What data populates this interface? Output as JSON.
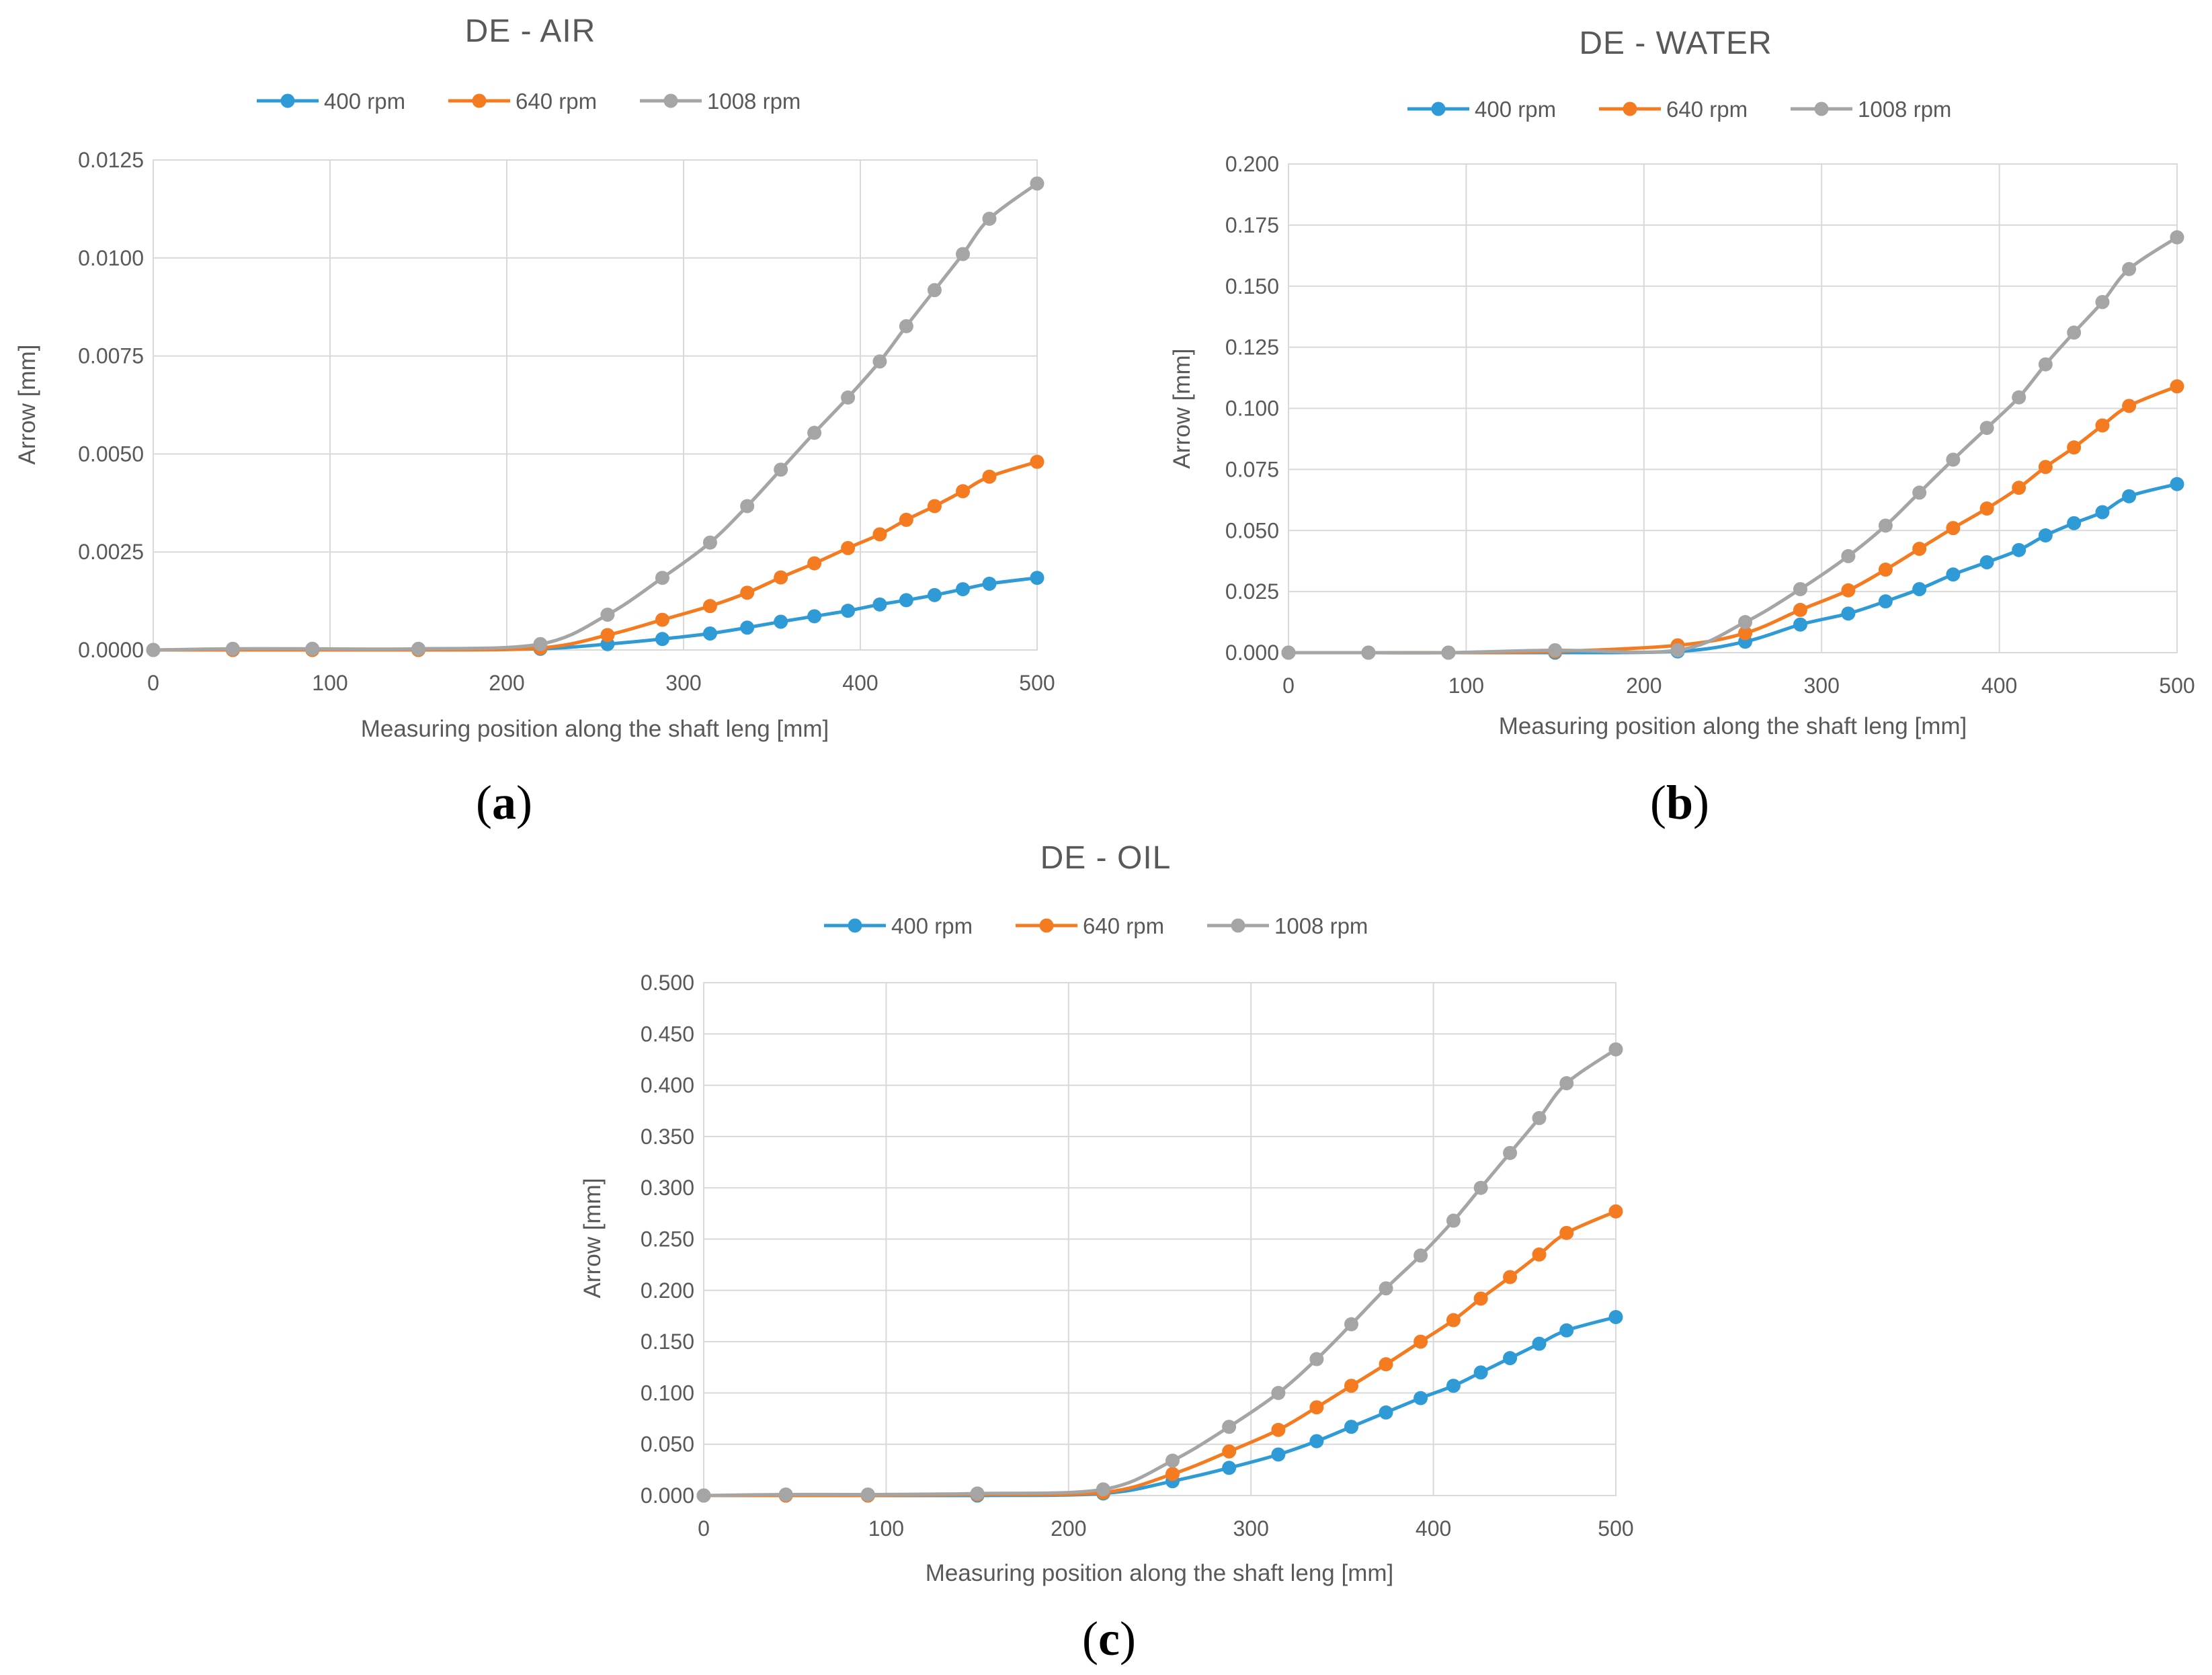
{
  "chart_data": [
    {
      "id": "a",
      "type": "line",
      "title": "DE - AIR",
      "panel_label": "a",
      "xlabel": "Measuring position along the shaft leng [mm]",
      "ylabel": "Arrow [mm]",
      "xlim": [
        0,
        500
      ],
      "ylim": [
        0,
        0.0125
      ],
      "x_ticks": [
        0,
        100,
        200,
        300,
        400,
        500
      ],
      "x_tick_labels": [
        "0",
        "100",
        "200",
        "300",
        "400",
        "500"
      ],
      "y_ticks": [
        0,
        0.0025,
        0.005,
        0.0075,
        0.01,
        0.0125
      ],
      "y_tick_labels": [
        "0.0000",
        "0.0025",
        "0.0050",
        "0.0075",
        "0.0100",
        "0.0125"
      ],
      "grid": true,
      "legend_position": "top",
      "x": [
        0,
        45,
        90,
        150,
        219,
        257,
        288,
        315,
        336,
        355,
        374,
        393,
        411,
        426,
        442,
        458,
        473,
        500
      ],
      "series": [
        {
          "name": "400 rpm",
          "color": "#2E9BD6",
          "values": [
            0,
            0,
            0,
            0,
            3e-05,
            0.00015,
            0.00028,
            0.00042,
            0.00057,
            0.00072,
            0.00086,
            0.001,
            0.00116,
            0.00127,
            0.0014,
            0.00155,
            0.00169,
            0.00184
          ]
        },
        {
          "name": "640 rpm",
          "color": "#F47B20",
          "values": [
            0,
            0,
            0,
            0,
            5e-05,
            0.00038,
            0.00077,
            0.00112,
            0.00146,
            0.00185,
            0.00221,
            0.0026,
            0.00295,
            0.00332,
            0.00367,
            0.00405,
            0.00442,
            0.0048
          ]
        },
        {
          "name": "1008 rpm",
          "color": "#A5A5A5",
          "values": [
            0,
            3e-05,
            3e-05,
            3e-05,
            0.00015,
            0.0009,
            0.00184,
            0.00274,
            0.00367,
            0.0046,
            0.00554,
            0.00644,
            0.00736,
            0.00826,
            0.00918,
            0.0101,
            0.011,
            0.0119
          ]
        }
      ]
    },
    {
      "id": "b",
      "type": "line",
      "title": "DE - WATER",
      "panel_label": "b",
      "xlabel": "Measuring position along the shaft leng [mm]",
      "ylabel": "Arrow [mm]",
      "xlim": [
        0,
        500
      ],
      "ylim": [
        0,
        0.2
      ],
      "x_ticks": [
        0,
        100,
        200,
        300,
        400,
        500
      ],
      "x_tick_labels": [
        "0",
        "100",
        "200",
        "300",
        "400",
        "500"
      ],
      "y_ticks": [
        0,
        0.025,
        0.05,
        0.075,
        0.1,
        0.125,
        0.15,
        0.175,
        0.2
      ],
      "y_tick_labels": [
        "0.000",
        "0.025",
        "0.050",
        "0.075",
        "0.100",
        "0.125",
        "0.150",
        "0.175",
        "0.200"
      ],
      "grid": true,
      "legend_position": "top",
      "x": [
        0,
        45,
        90,
        150,
        219,
        257,
        288,
        315,
        336,
        355,
        374,
        393,
        411,
        426,
        442,
        458,
        473,
        500
      ],
      "series": [
        {
          "name": "400 rpm",
          "color": "#2E9BD6",
          "values": [
            0,
            0,
            0,
            0,
            0.0005,
            0.0045,
            0.0115,
            0.016,
            0.021,
            0.026,
            0.032,
            0.037,
            0.042,
            0.048,
            0.053,
            0.0575,
            0.064,
            0.069
          ]
        },
        {
          "name": "640 rpm",
          "color": "#F47B20",
          "values": [
            0,
            0,
            0,
            0.0005,
            0.003,
            0.008,
            0.0175,
            0.0255,
            0.034,
            0.0425,
            0.051,
            0.059,
            0.0675,
            0.076,
            0.084,
            0.093,
            0.101,
            0.109
          ]
        },
        {
          "name": "1008 rpm",
          "color": "#A5A5A5",
          "values": [
            0,
            0,
            0,
            0.001,
            0.001,
            0.0125,
            0.026,
            0.0395,
            0.052,
            0.0655,
            0.079,
            0.092,
            0.1045,
            0.118,
            0.131,
            0.1435,
            0.157,
            0.17
          ]
        }
      ]
    },
    {
      "id": "c",
      "type": "line",
      "title": "DE - OIL",
      "panel_label": "c",
      "xlabel": "Measuring position along the shaft leng  [mm]",
      "ylabel": "Arrow [mm]",
      "xlim": [
        0,
        500
      ],
      "ylim": [
        0,
        0.5
      ],
      "x_ticks": [
        0,
        100,
        200,
        300,
        400,
        500
      ],
      "x_tick_labels": [
        "0",
        "100",
        "200",
        "300",
        "400",
        "500"
      ],
      "y_ticks": [
        0,
        0.05,
        0.1,
        0.15,
        0.2,
        0.25,
        0.3,
        0.35,
        0.4,
        0.45,
        0.5
      ],
      "y_tick_labels": [
        "0.000",
        "0.050",
        "0.100",
        "0.150",
        "0.200",
        "0.250",
        "0.300",
        "0.350",
        "0.400",
        "0.450",
        "0.500"
      ],
      "grid": true,
      "legend_position": "top",
      "x": [
        0,
        45,
        90,
        150,
        219,
        257,
        288,
        315,
        336,
        355,
        374,
        393,
        411,
        426,
        442,
        458,
        473,
        500
      ],
      "series": [
        {
          "name": "400 rpm",
          "color": "#2E9BD6",
          "values": [
            0,
            0,
            0,
            0,
            0.002,
            0.014,
            0.027,
            0.04,
            0.053,
            0.067,
            0.081,
            0.095,
            0.107,
            0.12,
            0.134,
            0.148,
            0.161,
            0.174
          ]
        },
        {
          "name": "640 rpm",
          "color": "#F47B20",
          "values": [
            0,
            0,
            0,
            0.001,
            0.003,
            0.021,
            0.043,
            0.064,
            0.086,
            0.107,
            0.128,
            0.15,
            0.171,
            0.192,
            0.213,
            0.235,
            0.256,
            0.277
          ]
        },
        {
          "name": "1008 rpm",
          "color": "#A5A5A5",
          "values": [
            0,
            0.001,
            0.001,
            0.002,
            0.006,
            0.034,
            0.067,
            0.1,
            0.133,
            0.167,
            0.202,
            0.234,
            0.268,
            0.3,
            0.334,
            0.368,
            0.402,
            0.435
          ]
        }
      ]
    }
  ]
}
